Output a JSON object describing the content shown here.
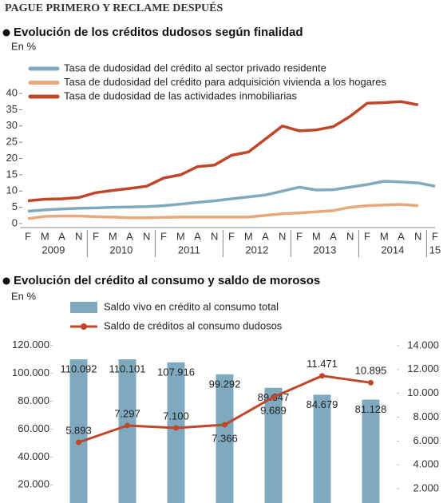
{
  "header": "PAGUE PRIMERO Y RECLAME DESPUÉS",
  "chart_data": [
    {
      "type": "line",
      "title": "Evolución de los créditos dudosos según finalidad",
      "y_label": "En %",
      "categories": [
        "F",
        "M",
        "A",
        "N",
        "F",
        "M",
        "A",
        "N",
        "F",
        "M",
        "A",
        "N",
        "F",
        "M",
        "A",
        "N",
        "F",
        "M",
        "A",
        "N",
        "F",
        "M",
        "A",
        "N",
        "F"
      ],
      "year_labels": [
        "2009",
        "2010",
        "2011",
        "2012",
        "2013",
        "2014",
        "15"
      ],
      "ylim": [
        0,
        41
      ],
      "yticks": [
        0,
        5,
        10,
        15,
        20,
        25,
        30,
        35,
        40
      ],
      "grid": false,
      "series": [
        {
          "name": "Tasa de dudosidad del crédito al sector privado residente",
          "color": "#7fa9bf",
          "values": [
            3.8,
            4.2,
            4.5,
            4.7,
            4.8,
            5.0,
            5.1,
            5.2,
            5.5,
            6.0,
            6.5,
            7.0,
            7.6,
            8.2,
            8.8,
            10.0,
            11.2,
            10.3,
            10.4,
            11.2,
            12.0,
            13.0,
            12.8,
            12.5,
            11.5
          ]
        },
        {
          "name": "Tasa de dudosidad del crédito para adquisición vivienda a los hogares",
          "color": "#e8a87c",
          "values": [
            1.5,
            2.2,
            2.3,
            2.3,
            2.1,
            2.0,
            1.8,
            1.8,
            1.9,
            2.0,
            2.0,
            2.0,
            2.0,
            2.0,
            2.5,
            3.0,
            3.3,
            3.6,
            4.0,
            5.0,
            5.5,
            5.7,
            5.9,
            5.5,
            null
          ]
        },
        {
          "name": "Tasa de dudosidad de las actividades inmobiliarias",
          "color": "#c0462a",
          "values": [
            7.0,
            7.5,
            7.6,
            8.0,
            9.5,
            10.2,
            10.8,
            11.5,
            14.0,
            15.0,
            17.5,
            18.0,
            21.0,
            22.0,
            26.0,
            30.0,
            28.5,
            28.8,
            29.8,
            33.0,
            37.0,
            37.2,
            37.5,
            36.5,
            null
          ]
        }
      ]
    },
    {
      "type": "bar",
      "title": "Evolución del crédito al consumo y saldo de morosos",
      "y_label": "En %",
      "categories": [
        null,
        null,
        null,
        null,
        null,
        null,
        null
      ],
      "ylim": [
        7000,
        125000
      ],
      "yticks": [
        {
          "value": 20000,
          "label": "20.000"
        },
        {
          "value": 40000,
          "label": "40.000"
        },
        {
          "value": 60000,
          "label": "60.000"
        },
        {
          "value": 80000,
          "label": "80.000"
        },
        {
          "value": 100000,
          "label": "100.000"
        },
        {
          "value": 120000,
          "label": "120.000"
        }
      ],
      "y2lim": [
        800,
        14600
      ],
      "y2ticks": [
        {
          "value": 2000,
          "label": "2.000"
        },
        {
          "value": 4000,
          "label": "4.000"
        },
        {
          "value": 6000,
          "label": "6.000"
        },
        {
          "value": 8000,
          "label": "8.000"
        },
        {
          "value": 10000,
          "label": "10.000"
        },
        {
          "value": 12000,
          "label": "12.000"
        },
        {
          "value": 14000,
          "label": "14.000"
        }
      ],
      "grid": false,
      "series": [
        {
          "name": "Saldo vivo en crédito al consumo total",
          "type": "bar",
          "color": "#7fa9bf",
          "values": [
            110092,
            110101,
            107916,
            99292,
            89647,
            84679,
            81128
          ],
          "value_labels": [
            "110.092",
            "110.101",
            "107.916",
            "99.292",
            "89.647",
            "84.679",
            "81.128"
          ]
        },
        {
          "name": "Saldo de créditos al consumo dudosos",
          "type": "line",
          "axis": "y2",
          "color": "#c0462a",
          "values": [
            5893,
            7297,
            7100,
            7366,
            9689,
            11471,
            10895
          ],
          "value_labels": [
            "5.893",
            "7.297",
            "7.100",
            "7.366",
            "9.689",
            "11.471",
            "10.895"
          ]
        }
      ]
    }
  ]
}
